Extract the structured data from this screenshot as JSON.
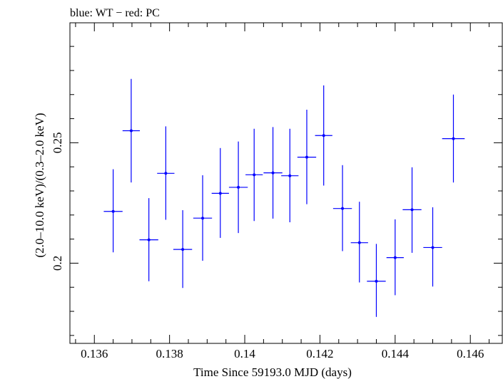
{
  "chart_data": {
    "type": "scatter",
    "title": "blue: WT − red: PC",
    "xlabel": "Time Since 59193.0 MJD (days)",
    "ylabel": "(2.0–10.0 keV)/(0.3–2.0 keV)",
    "xlim": [
      0.13535,
      0.14685
    ],
    "ylim": [
      0.1667,
      0.2998
    ],
    "x_ticks": [
      0.136,
      0.138,
      0.14,
      0.142,
      0.144,
      0.146
    ],
    "x_tick_labels": [
      "0.136",
      "0.138",
      "0.14",
      "0.142",
      "0.144",
      "0.146"
    ],
    "y_ticks": [
      0.2,
      0.25
    ],
    "y_tick_labels": [
      "0.2",
      "0.25"
    ],
    "grid": false,
    "series": [
      {
        "color": "#0000ff",
        "points": [
          {
            "x": 0.1365,
            "y": 0.2215,
            "xerr": 0.00025,
            "ylo": 0.2045,
            "yhi": 0.239
          },
          {
            "x": 0.13698,
            "y": 0.255,
            "xerr": 0.00023,
            "ylo": 0.2335,
            "yhi": 0.2765
          },
          {
            "x": 0.13745,
            "y": 0.2097,
            "xerr": 0.00025,
            "ylo": 0.1925,
            "yhi": 0.227
          },
          {
            "x": 0.1379,
            "y": 0.2373,
            "xerr": 0.00023,
            "ylo": 0.218,
            "yhi": 0.2568
          },
          {
            "x": 0.13835,
            "y": 0.2057,
            "xerr": 0.00025,
            "ylo": 0.1897,
            "yhi": 0.222
          },
          {
            "x": 0.13888,
            "y": 0.2187,
            "xerr": 0.00025,
            "ylo": 0.201,
            "yhi": 0.2365
          },
          {
            "x": 0.13935,
            "y": 0.229,
            "xerr": 0.00023,
            "ylo": 0.2105,
            "yhi": 0.2478
          },
          {
            "x": 0.13983,
            "y": 0.2315,
            "xerr": 0.00025,
            "ylo": 0.2125,
            "yhi": 0.2505
          },
          {
            "x": 0.14025,
            "y": 0.2367,
            "xerr": 0.00023,
            "ylo": 0.2175,
            "yhi": 0.2558
          },
          {
            "x": 0.14075,
            "y": 0.2375,
            "xerr": 0.00025,
            "ylo": 0.2185,
            "yhi": 0.2565
          },
          {
            "x": 0.1412,
            "y": 0.2363,
            "xerr": 0.00023,
            "ylo": 0.217,
            "yhi": 0.2558
          },
          {
            "x": 0.14165,
            "y": 0.244,
            "xerr": 0.00025,
            "ylo": 0.2245,
            "yhi": 0.2637
          },
          {
            "x": 0.1421,
            "y": 0.253,
            "xerr": 0.00023,
            "ylo": 0.2322,
            "yhi": 0.2738
          },
          {
            "x": 0.1426,
            "y": 0.2227,
            "xerr": 0.00025,
            "ylo": 0.205,
            "yhi": 0.2407
          },
          {
            "x": 0.14305,
            "y": 0.2085,
            "xerr": 0.00023,
            "ylo": 0.192,
            "yhi": 0.2255
          },
          {
            "x": 0.1435,
            "y": 0.1925,
            "xerr": 0.00025,
            "ylo": 0.1777,
            "yhi": 0.208
          },
          {
            "x": 0.144,
            "y": 0.2023,
            "xerr": 0.00023,
            "ylo": 0.1867,
            "yhi": 0.2182
          },
          {
            "x": 0.14445,
            "y": 0.2222,
            "xerr": 0.00025,
            "ylo": 0.2043,
            "yhi": 0.2398
          },
          {
            "x": 0.145,
            "y": 0.2065,
            "xerr": 0.00025,
            "ylo": 0.1903,
            "yhi": 0.2232
          },
          {
            "x": 0.14555,
            "y": 0.2517,
            "xerr": 0.0003,
            "ylo": 0.2335,
            "yhi": 0.27
          }
        ]
      }
    ]
  }
}
